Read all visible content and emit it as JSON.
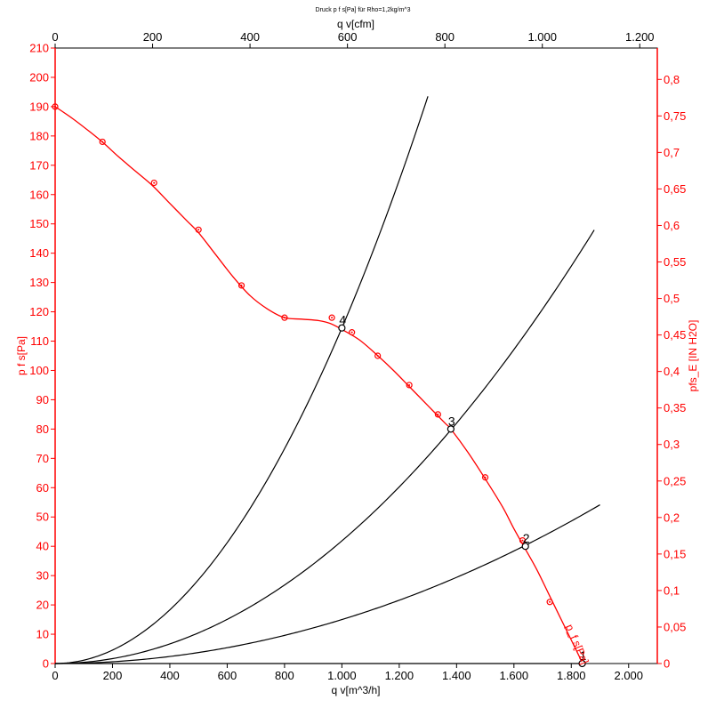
{
  "chart_data": {
    "type": "line",
    "title": "Druck p f s[Pa] für Rho=1,2kg/m^3",
    "xlabel": "q v[m^3/h]",
    "x2label": "q v[cfm]",
    "ylabel": "p f s[Pa]",
    "y2label": "pfs_E [IN H2O]",
    "xlim": [
      0,
      2100
    ],
    "ylim": [
      0,
      210
    ],
    "x2lim": [
      0,
      1236
    ],
    "y2lim": [
      0,
      0.843
    ],
    "grid": false,
    "x_ticks": [
      "0",
      "200",
      "400",
      "600",
      "800",
      "1.000",
      "1.200",
      "1.400",
      "1.600",
      "1.800",
      "2.000"
    ],
    "x_tick_values": [
      0,
      200,
      400,
      600,
      800,
      1000,
      1200,
      1400,
      1600,
      1800,
      2000
    ],
    "x2_ticks": [
      "0",
      "200",
      "400",
      "600",
      "800",
      "1.000",
      "1.200"
    ],
    "x2_tick_values": [
      0,
      200,
      400,
      600,
      800,
      1000,
      1200
    ],
    "y_ticks": [
      "0",
      "10",
      "20",
      "30",
      "40",
      "50",
      "60",
      "70",
      "80",
      "90",
      "100",
      "110",
      "120",
      "130",
      "140",
      "150",
      "160",
      "170",
      "180",
      "190",
      "200",
      "210"
    ],
    "y_tick_values": [
      0,
      10,
      20,
      30,
      40,
      50,
      60,
      70,
      80,
      90,
      100,
      110,
      120,
      130,
      140,
      150,
      160,
      170,
      180,
      190,
      200,
      210
    ],
    "y2_ticks": [
      "0",
      "0,05",
      "0,1",
      "0,15",
      "0,2",
      "0,25",
      "0,3",
      "0,35",
      "0,4",
      "0,45",
      "0,5",
      "0,55",
      "0,6",
      "0,65",
      "0,7",
      "0,75",
      "0,8"
    ],
    "y2_tick_values": [
      0,
      0.05,
      0.1,
      0.15,
      0.2,
      0.25,
      0.3,
      0.35,
      0.4,
      0.45,
      0.5,
      0.55,
      0.6,
      0.65,
      0.7,
      0.75,
      0.8
    ],
    "fan_curve": {
      "name": "p_f s[Pa]",
      "color": "#ff0000",
      "line": {
        "x": [
          0,
          60,
          120,
          170,
          220,
          280,
          340,
          400,
          460,
          500,
          560,
          620,
          680,
          740,
          800,
          860,
          920,
          960,
          1000,
          1060,
          1120,
          1180,
          1240,
          1300,
          1360,
          1380,
          1440,
          1500,
          1560,
          1600,
          1640,
          1680,
          1720,
          1760,
          1800,
          1830,
          1840
        ],
        "y": [
          190,
          186,
          181.5,
          177.5,
          173,
          168,
          163,
          157,
          151,
          147,
          139.5,
          132,
          125.5,
          121,
          118,
          117.5,
          117,
          116,
          114,
          110.5,
          105.5,
          100,
          94,
          88,
          82,
          80,
          72,
          63,
          53.5,
          46,
          39,
          32,
          24,
          16,
          8,
          2,
          0
        ]
      },
      "markers": {
        "x": [
          0,
          165,
          345,
          500,
          650,
          800,
          965,
          1035,
          1125,
          1235,
          1335,
          1500,
          1630,
          1725,
          1840
        ],
        "y": [
          190,
          178,
          164,
          148,
          129,
          118,
          118,
          113,
          105,
          95,
          85,
          63.5,
          42,
          21,
          0
        ]
      }
    },
    "system_curves": [
      {
        "k": 0.0001145,
        "x_max": 1300
      },
      {
        "k": 4.185e-05,
        "x_max": 1880
      },
      {
        "k": 1.5e-05,
        "x_max": 1900
      }
    ],
    "system_color": "#000000",
    "operating_points": [
      {
        "label": "1",
        "x": 1838,
        "y": 0
      },
      {
        "label": "2",
        "x": 1640,
        "y": 40
      },
      {
        "label": "3",
        "x": 1380,
        "y": 80
      },
      {
        "label": "4",
        "x": 1000,
        "y": 114.5
      }
    ],
    "curve_label": "p_f s[Pa]"
  }
}
